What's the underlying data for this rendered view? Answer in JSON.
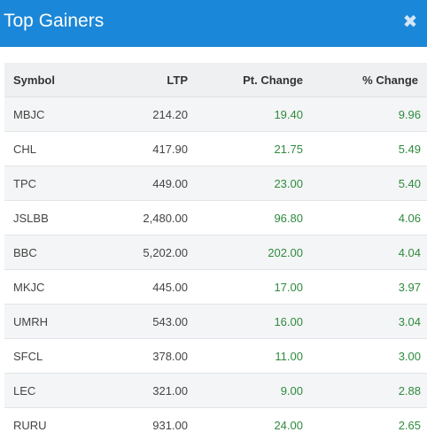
{
  "header": {
    "title": "Top Gainers",
    "close_icon": "close-icon",
    "background": "#1b87d8"
  },
  "table": {
    "columns": [
      "Symbol",
      "LTP",
      "Pt. Change",
      "% Change"
    ],
    "gain_color": "#2e8b3d",
    "rows": [
      {
        "symbol": "MBJC",
        "ltp": "214.20",
        "pt_change": "19.40",
        "pct_change": "9.96"
      },
      {
        "symbol": "CHL",
        "ltp": "417.90",
        "pt_change": "21.75",
        "pct_change": "5.49"
      },
      {
        "symbol": "TPC",
        "ltp": "449.00",
        "pt_change": "23.00",
        "pct_change": "5.40"
      },
      {
        "symbol": "JSLBB",
        "ltp": "2,480.00",
        "pt_change": "96.80",
        "pct_change": "4.06"
      },
      {
        "symbol": "BBC",
        "ltp": "5,202.00",
        "pt_change": "202.00",
        "pct_change": "4.04"
      },
      {
        "symbol": "MKJC",
        "ltp": "445.00",
        "pt_change": "17.00",
        "pct_change": "3.97"
      },
      {
        "symbol": "UMRH",
        "ltp": "543.00",
        "pt_change": "16.00",
        "pct_change": "3.04"
      },
      {
        "symbol": "SFCL",
        "ltp": "378.00",
        "pt_change": "11.00",
        "pct_change": "3.00"
      },
      {
        "symbol": "LEC",
        "ltp": "321.00",
        "pt_change": "9.00",
        "pct_change": "2.88"
      },
      {
        "symbol": "RURU",
        "ltp": "931.00",
        "pt_change": "24.00",
        "pct_change": "2.65"
      }
    ]
  }
}
